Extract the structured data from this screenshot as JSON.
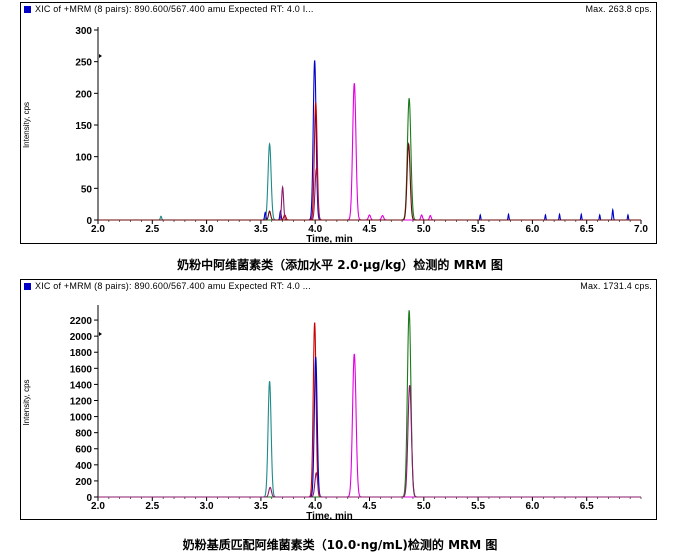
{
  "chart_data": [
    {
      "type": "line",
      "header": "XIC of +MRM (8 pairs): 890.600/567.400 amu Expected RT: 4.0 I...",
      "max_label": "Max. 263.8 cps.",
      "xlabel": "Time, min",
      "ylabel": "Intensity, cps",
      "xlim": [
        2.0,
        7.0
      ],
      "ylim": [
        0,
        300
      ],
      "x_ticks": [
        2.0,
        2.5,
        3.0,
        3.5,
        4.0,
        4.5,
        5.0,
        5.5,
        6.0,
        6.5,
        7.0
      ],
      "y_ticks": [
        0,
        50,
        100,
        150,
        200,
        250,
        300
      ],
      "grid": false,
      "series": [
        {
          "color": "#1f8a8a",
          "peaks": [
            {
              "x": 3.58,
              "y": 120,
              "w": 0.014
            },
            {
              "x": 2.58,
              "y": 6,
              "w": 0.006
            }
          ]
        },
        {
          "color": "#0000c8",
          "peaks": [
            {
              "x": 3.995,
              "y": 252,
              "w": 0.013
            },
            {
              "x": 3.54,
              "y": 12,
              "w": 0.006
            },
            {
              "x": 3.68,
              "y": 14,
              "w": 0.006
            },
            {
              "x": 5.52,
              "y": 8,
              "w": 0.004
            },
            {
              "x": 5.78,
              "y": 9,
              "w": 0.004
            },
            {
              "x": 6.12,
              "y": 8,
              "w": 0.004
            },
            {
              "x": 6.25,
              "y": 9,
              "w": 0.004
            },
            {
              "x": 6.45,
              "y": 9,
              "w": 0.004
            },
            {
              "x": 6.62,
              "y": 8,
              "w": 0.004
            },
            {
              "x": 6.74,
              "y": 16,
              "w": 0.005
            },
            {
              "x": 6.88,
              "y": 8,
              "w": 0.004
            }
          ]
        },
        {
          "color": "#c80000",
          "peaks": [
            {
              "x": 4.005,
              "y": 185,
              "w": 0.013
            },
            {
              "x": 3.72,
              "y": 8,
              "w": 0.01
            }
          ]
        },
        {
          "color": "#8b1a6b",
          "peaks": [
            {
              "x": 3.7,
              "y": 52,
              "w": 0.009
            },
            {
              "x": 4.01,
              "y": 80,
              "w": 0.012
            }
          ]
        },
        {
          "color": "#e000e0",
          "peaks": [
            {
              "x": 4.36,
              "y": 216,
              "w": 0.015
            },
            {
              "x": 4.5,
              "y": 8,
              "w": 0.01
            },
            {
              "x": 4.62,
              "y": 7,
              "w": 0.01
            },
            {
              "x": 4.98,
              "y": 8,
              "w": 0.008
            },
            {
              "x": 5.06,
              "y": 7,
              "w": 0.008
            }
          ]
        },
        {
          "color": "#1a7a1a",
          "peaks": [
            {
              "x": 4.865,
              "y": 192,
              "w": 0.016
            }
          ]
        },
        {
          "color": "#6a0a0a",
          "peaks": [
            {
              "x": 4.86,
              "y": 120,
              "w": 0.014
            },
            {
              "x": 3.58,
              "y": 14,
              "w": 0.01
            }
          ]
        }
      ]
    },
    {
      "type": "line",
      "header": "XIC of +MRM (8 pairs): 890.600/567.400 amu Expected RT: 4.0 ...",
      "max_label": "Max. 1731.4 cps.",
      "xlabel": "Time, min",
      "ylabel": "Intensity, cps",
      "xlim": [
        2.0,
        7.0
      ],
      "ylim": [
        0,
        2350
      ],
      "x_ticks": [
        2.0,
        2.5,
        3.0,
        3.5,
        4.0,
        4.5,
        5.0,
        5.5,
        6.0,
        6.5
      ],
      "y_ticks": [
        0,
        200,
        400,
        600,
        800,
        1000,
        1200,
        1400,
        1600,
        1800,
        2000,
        2200
      ],
      "grid": false,
      "series": [
        {
          "color": "#1f8a8a",
          "peaks": [
            {
              "x": 3.58,
              "y": 1440,
              "w": 0.014
            }
          ]
        },
        {
          "color": "#c80000",
          "peaks": [
            {
              "x": 3.995,
              "y": 2170,
              "w": 0.013
            }
          ]
        },
        {
          "color": "#0000c8",
          "peaks": [
            {
              "x": 4.005,
              "y": 1740,
              "w": 0.013
            }
          ]
        },
        {
          "color": "#e000e0",
          "peaks": [
            {
              "x": 4.36,
              "y": 1780,
              "w": 0.016
            }
          ]
        },
        {
          "color": "#1a7a1a",
          "peaks": [
            {
              "x": 4.865,
              "y": 2320,
              "w": 0.016
            }
          ]
        },
        {
          "color": "#8b1a6b",
          "peaks": [
            {
              "x": 4.87,
              "y": 1390,
              "w": 0.016
            },
            {
              "x": 3.585,
              "y": 120,
              "w": 0.012
            },
            {
              "x": 4.01,
              "y": 300,
              "w": 0.013
            }
          ]
        }
      ]
    }
  ],
  "captions": [
    "奶粉中阿维菌素类（添加水平 2.0·μg/kg）检测的 MRM 图",
    "奶粉基质匹配阿维菌素类（10.0·ng/mL)检测的 MRM 图"
  ]
}
